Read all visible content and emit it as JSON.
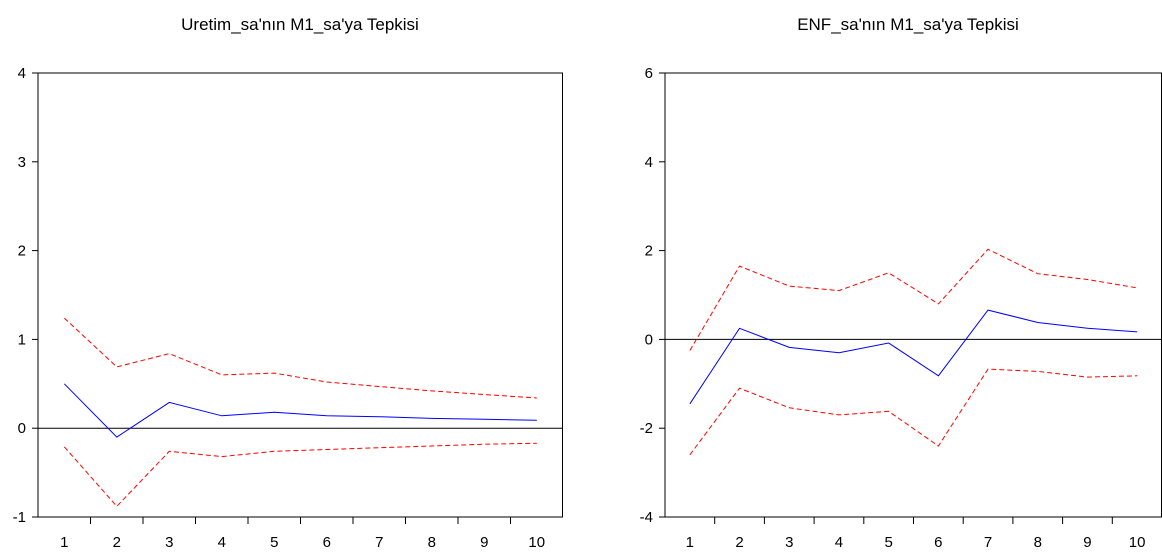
{
  "chart_data": [
    {
      "type": "line",
      "title": "Uretim_sa'nın M1_sa'ya Tepkisi",
      "x": [
        1,
        2,
        3,
        4,
        5,
        6,
        7,
        8,
        9,
        10
      ],
      "x_tick_labels": [
        "1",
        "2",
        "3",
        "4",
        "5",
        "6",
        "7",
        "8",
        "9",
        "10"
      ],
      "ylim": [
        -1,
        4
      ],
      "y_ticks": [
        -1,
        0,
        1,
        2,
        3,
        4
      ],
      "y_tick_labels": [
        "-1",
        "0",
        "1",
        "2",
        "3",
        "4"
      ],
      "zero_line": true,
      "grid": false,
      "series": [
        {
          "role": "response",
          "color": "#0000ff",
          "dash": "solid",
          "values": [
            0.5,
            -0.1,
            0.29,
            0.14,
            0.18,
            0.14,
            0.13,
            0.11,
            0.1,
            0.09
          ]
        },
        {
          "role": "upper",
          "color": "#ff0000",
          "dash": "dashed",
          "values": [
            1.24,
            0.69,
            0.84,
            0.6,
            0.62,
            0.52,
            0.47,
            0.42,
            0.38,
            0.34
          ]
        },
        {
          "role": "lower",
          "color": "#ff0000",
          "dash": "dashed",
          "values": [
            -0.21,
            -0.88,
            -0.26,
            -0.32,
            -0.26,
            -0.24,
            -0.22,
            -0.2,
            -0.18,
            -0.17
          ]
        }
      ]
    },
    {
      "type": "line",
      "title": "ENF_sa'nın M1_sa'ya Tepkisi",
      "x": [
        1,
        2,
        3,
        4,
        5,
        6,
        7,
        8,
        9,
        10
      ],
      "x_tick_labels": [
        "1",
        "2",
        "3",
        "4",
        "5",
        "6",
        "7",
        "8",
        "9",
        "10"
      ],
      "ylim": [
        -4,
        6
      ],
      "y_ticks": [
        -4,
        -2,
        0,
        2,
        4,
        6
      ],
      "y_tick_labels": [
        "-4",
        "-2",
        "0",
        "2",
        "4",
        "6"
      ],
      "zero_line": true,
      "grid": false,
      "series": [
        {
          "role": "response",
          "color": "#0000ff",
          "dash": "solid",
          "values": [
            -1.45,
            0.25,
            -0.18,
            -0.3,
            -0.08,
            -0.82,
            0.66,
            0.38,
            0.25,
            0.17
          ]
        },
        {
          "role": "upper",
          "color": "#ff0000",
          "dash": "dashed",
          "values": [
            -0.25,
            1.65,
            1.2,
            1.1,
            1.5,
            0.8,
            2.03,
            1.48,
            1.35,
            1.16
          ]
        },
        {
          "role": "lower",
          "color": "#ff0000",
          "dash": "dashed",
          "values": [
            -2.6,
            -1.1,
            -1.54,
            -1.7,
            -1.62,
            -2.4,
            -0.67,
            -0.72,
            -0.85,
            -0.82
          ]
        }
      ]
    }
  ]
}
